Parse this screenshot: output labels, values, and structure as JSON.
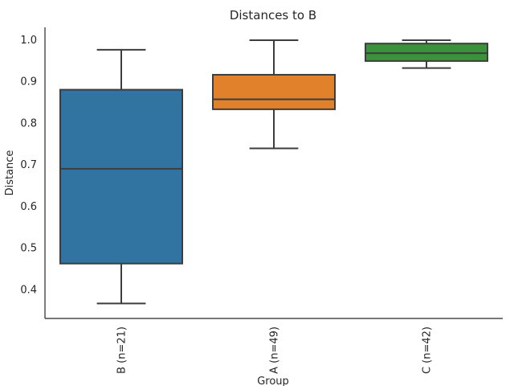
{
  "chart_data": {
    "type": "box",
    "title": "Distances to B",
    "xlabel": "Group",
    "ylabel": "Distance",
    "ylim": [
      0.33,
      1.03
    ],
    "yticks": [
      0.4,
      0.5,
      0.6,
      0.7,
      0.8,
      0.9,
      1.0
    ],
    "ytick_labels": [
      "0.4",
      "0.5",
      "0.6",
      "0.7",
      "0.8",
      "0.9",
      "1.0"
    ],
    "grid": false,
    "categories": [
      "B (n=21)",
      "A (n=49)",
      "C (n=42)"
    ],
    "boxes": [
      {
        "category": "B (n=21)",
        "whisker_low": 0.366,
        "q1": 0.462,
        "median": 0.69,
        "q3": 0.88,
        "whisker_high": 0.976,
        "color": "#3274a1"
      },
      {
        "category": "A (n=49)",
        "whisker_low": 0.739,
        "q1": 0.833,
        "median": 0.857,
        "q3": 0.916,
        "whisker_high": 0.999,
        "color": "#e1812c"
      },
      {
        "category": "C (n=42)",
        "whisker_low": 0.932,
        "q1": 0.949,
        "median": 0.968,
        "q3": 0.991,
        "whisker_high": 0.999,
        "color": "#3a923a"
      }
    ],
    "line_color": "#3d3d3d"
  }
}
